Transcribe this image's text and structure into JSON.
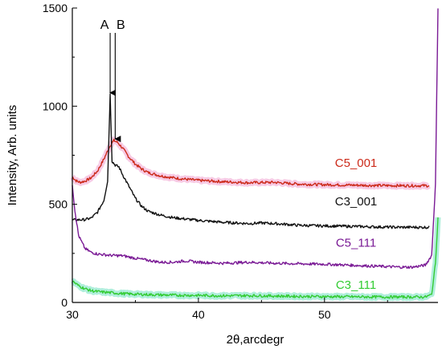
{
  "chart_data": {
    "type": "line",
    "xlabel": "2θ,arcdegr",
    "ylabel": "Intensity, Arb. units",
    "xlim": [
      30,
      59
    ],
    "ylim": [
      0,
      1500
    ],
    "x_ticks": [
      30,
      40,
      50
    ],
    "x_tick_labels": [
      "30",
      "40",
      "50"
    ],
    "y_ticks": [
      0,
      500,
      1000,
      1500
    ],
    "y_tick_labels": [
      "0",
      "500",
      "1000",
      "1500"
    ],
    "grid": false,
    "annotations": [
      {
        "text": "A",
        "x": 33.0
      },
      {
        "text": "B",
        "x": 33.4
      }
    ],
    "series": [
      {
        "name": "C5_001",
        "color": "#cc2a1a",
        "halo": "#f0a0d0",
        "label_x": 52.5,
        "label_y": 690,
        "points": [
          [
            30,
            640
          ],
          [
            30.3,
            620
          ],
          [
            30.6,
            612
          ],
          [
            31,
            618
          ],
          [
            31.5,
            635
          ],
          [
            32,
            670
          ],
          [
            32.5,
            730
          ],
          [
            33,
            800
          ],
          [
            33.3,
            825
          ],
          [
            33.6,
            815
          ],
          [
            34,
            785
          ],
          [
            34.5,
            740
          ],
          [
            35,
            705
          ],
          [
            35.5,
            680
          ],
          [
            36,
            662
          ],
          [
            37,
            645
          ],
          [
            38,
            635
          ],
          [
            39,
            628
          ],
          [
            40,
            622
          ],
          [
            42,
            615
          ],
          [
            44,
            610
          ],
          [
            45,
            611
          ],
          [
            46,
            612
          ],
          [
            47,
            607
          ],
          [
            48,
            603
          ],
          [
            50,
            600
          ],
          [
            52,
            598
          ],
          [
            54,
            596
          ],
          [
            56,
            595
          ],
          [
            58.3,
            595
          ]
        ]
      },
      {
        "name": "C3_001",
        "color": "#111111",
        "halo": "",
        "label_x": 52.5,
        "label_y": 495,
        "points": [
          [
            30,
            420
          ],
          [
            31,
            422
          ],
          [
            31.5,
            430
          ],
          [
            32,
            460
          ],
          [
            32.5,
            520
          ],
          [
            32.8,
            620
          ],
          [
            33.0,
            1060
          ],
          [
            33.15,
            720
          ],
          [
            33.4,
            700
          ],
          [
            33.7,
            690
          ],
          [
            34,
            650
          ],
          [
            34.5,
            590
          ],
          [
            35,
            530
          ],
          [
            35.5,
            490
          ],
          [
            36,
            465
          ],
          [
            37,
            445
          ],
          [
            38,
            432
          ],
          [
            39,
            425
          ],
          [
            40,
            418
          ],
          [
            42,
            408
          ],
          [
            44,
            402
          ],
          [
            45,
            405
          ],
          [
            46,
            402
          ],
          [
            47,
            398
          ],
          [
            48,
            393
          ],
          [
            50,
            390
          ],
          [
            52,
            388
          ],
          [
            54,
            385
          ],
          [
            56,
            383
          ],
          [
            58.3,
            383
          ]
        ]
      },
      {
        "name": "C5_111",
        "color": "#7a1a95",
        "halo": "",
        "label_x": 52.5,
        "label_y": 285,
        "points": [
          [
            30,
            600
          ],
          [
            30.2,
            470
          ],
          [
            30.5,
            340
          ],
          [
            31,
            275
          ],
          [
            31.5,
            255
          ],
          [
            32,
            247
          ],
          [
            33,
            240
          ],
          [
            34,
            238
          ],
          [
            35,
            225
          ],
          [
            36,
            215
          ],
          [
            37,
            205
          ],
          [
            38,
            205
          ],
          [
            39,
            212
          ],
          [
            40,
            205
          ],
          [
            42,
            200
          ],
          [
            44,
            205
          ],
          [
            46,
            200
          ],
          [
            48,
            197
          ],
          [
            50,
            195
          ],
          [
            52,
            190
          ],
          [
            54,
            185
          ],
          [
            56,
            180
          ],
          [
            57,
            180
          ],
          [
            58,
            190
          ],
          [
            58.5,
            240
          ],
          [
            58.8,
            600
          ],
          [
            59,
            1500
          ]
        ]
      },
      {
        "name": "C3_111",
        "color": "#33cc33",
        "halo": "#70e0c0",
        "label_x": 52.5,
        "label_y": 70,
        "points": [
          [
            30,
            110
          ],
          [
            30.5,
            85
          ],
          [
            31,
            70
          ],
          [
            31.5,
            60
          ],
          [
            32,
            55
          ],
          [
            33,
            50
          ],
          [
            34,
            45
          ],
          [
            35,
            42
          ],
          [
            36,
            40
          ],
          [
            38,
            37
          ],
          [
            40,
            36
          ],
          [
            42,
            34
          ],
          [
            44,
            35
          ],
          [
            46,
            33
          ],
          [
            48,
            31
          ],
          [
            50,
            30
          ],
          [
            52,
            29
          ],
          [
            54,
            28
          ],
          [
            56,
            28
          ],
          [
            58,
            28
          ],
          [
            58.5,
            40
          ],
          [
            58.8,
            200
          ],
          [
            59,
            430
          ]
        ]
      }
    ]
  }
}
